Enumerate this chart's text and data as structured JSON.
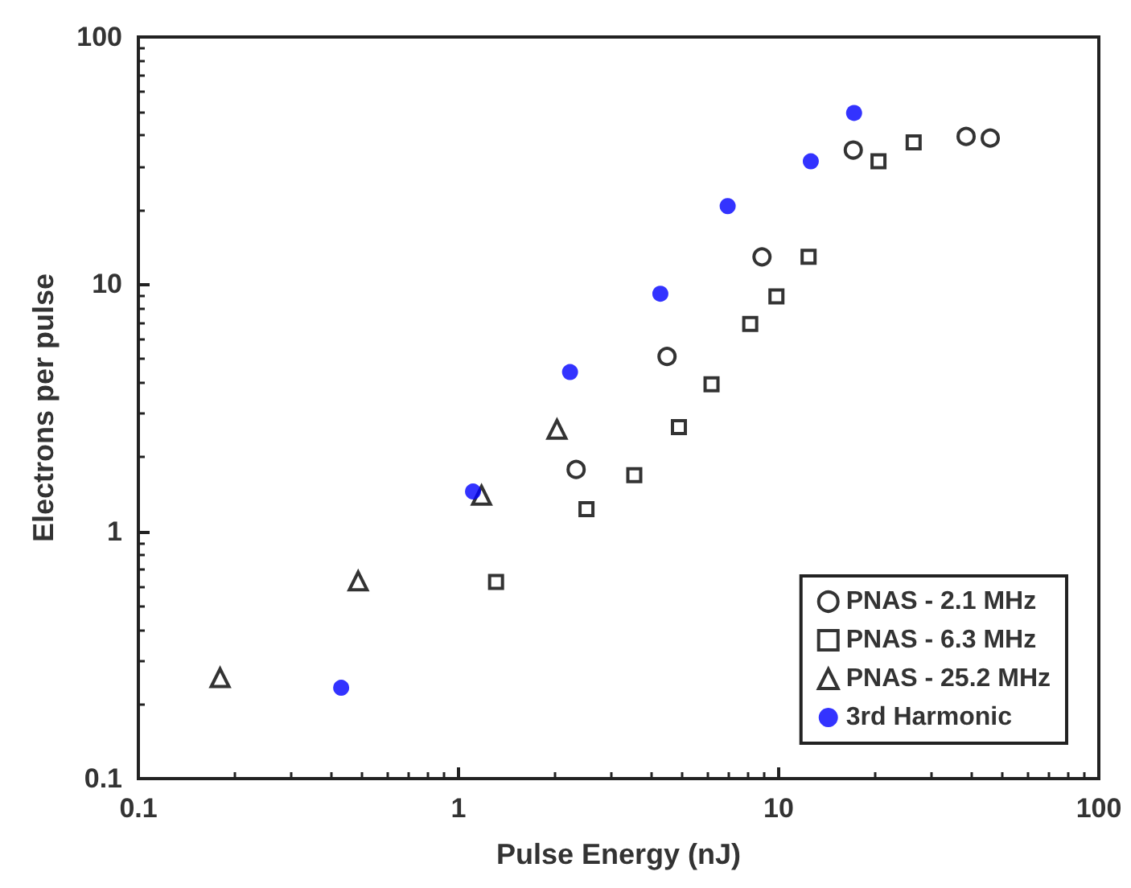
{
  "chart_data": {
    "type": "scatter",
    "xlabel": "Pulse Energy (nJ)",
    "ylabel": "Electrons per pulse",
    "log": "xy",
    "grid": false,
    "legend": "bottom right",
    "xlim": [
      0.1,
      100
    ],
    "xticks": [
      0.1,
      1,
      10,
      100
    ],
    "ylim": [
      0.1,
      100
    ],
    "yticks": [
      0.1,
      1,
      10,
      100
    ],
    "series": [
      {
        "name": "PNAS - 2.1 MHz",
        "color": "#000000",
        "marker": "circle",
        "x": [
          2.33,
          4.48,
          8.87,
          17.1,
          38.5,
          45.8
        ],
        "values": [
          1.78,
          5.1,
          12.9,
          34.9,
          39.6,
          39.0
        ]
      },
      {
        "name": "PNAS - 6.3 MHz",
        "color": "#000000",
        "marker": "square",
        "x": [
          1.31,
          2.51,
          3.54,
          4.88,
          6.17,
          8.15,
          9.84,
          12.4,
          20.5,
          26.4
        ],
        "values": [
          0.625,
          1.23,
          1.69,
          2.64,
          3.94,
          6.9,
          8.93,
          12.9,
          31.4,
          37.5
        ]
      },
      {
        "name": "PNAS - 25.2 MHz",
        "color": "#000000",
        "marker": "triangle",
        "x": [
          0.18,
          0.486,
          1.18,
          2.03
        ],
        "values": [
          0.256,
          0.63,
          1.4,
          2.59
        ]
      },
      {
        "name": "3rd Harmonic",
        "color": "#0000ff",
        "marker": "circle",
        "x": [
          0.43,
          1.11,
          2.23,
          4.27,
          6.93,
          12.6,
          17.2
        ],
        "values": [
          0.233,
          1.45,
          4.41,
          9.15,
          20.7,
          31.4,
          49.3
        ]
      }
    ]
  }
}
